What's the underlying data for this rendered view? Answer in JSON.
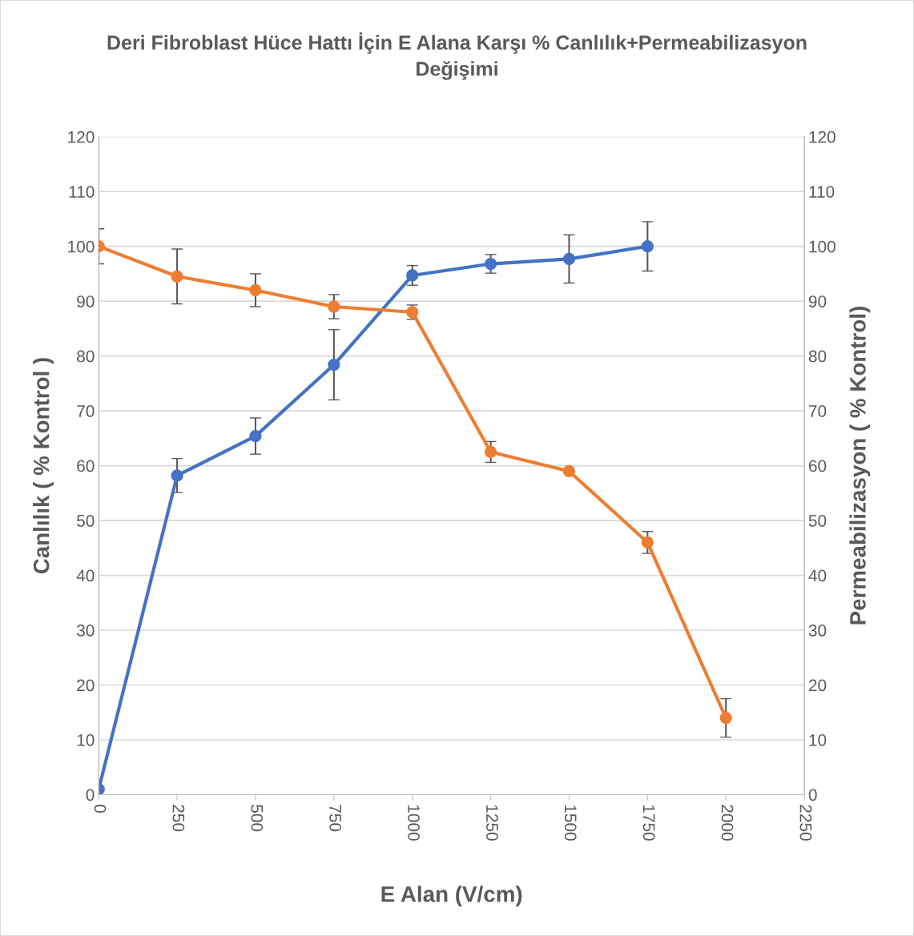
{
  "chart_data": {
    "type": "line",
    "title": "Deri Fibroblast Hüce Hattı İçin E Alana Karşı % Canlılık+Permeabilizasyon\nDeğişimi",
    "xlabel": "E Alan (V/cm)",
    "ylabel": "Canlılık ( % Kontrol )",
    "y2label": "Permeabilizasyon ( % Kontrol)",
    "series": [
      {
        "color": "#4472c4",
        "x": [
          0,
          250,
          500,
          750,
          1000,
          1250,
          1500,
          1750
        ],
        "values": [
          1.0,
          58.2,
          65.4,
          78.4,
          94.7,
          96.8,
          97.7,
          100
        ],
        "errors": [
          null,
          3.1,
          3.3,
          6.4,
          1.8,
          1.7,
          4.4,
          4.5
        ]
      },
      {
        "color": "#ed7d31",
        "axis": "y2",
        "x": [
          0,
          250,
          500,
          750,
          1000,
          1250,
          1500,
          1750,
          2000
        ],
        "values": [
          100,
          94.5,
          92.0,
          89.0,
          88.0,
          62.5,
          59.0,
          46.0,
          14.0
        ],
        "errors": [
          3.2,
          5,
          3,
          2.2,
          1.3,
          1.9,
          null,
          2,
          3.5
        ]
      }
    ],
    "xlim": [
      0,
      2250
    ],
    "xticks": [
      0,
      250,
      500,
      750,
      1000,
      1250,
      1500,
      1750,
      2000,
      2250
    ],
    "ylim": [
      0,
      120
    ],
    "yticks": [
      0,
      10,
      20,
      30,
      40,
      50,
      60,
      70,
      80,
      90,
      100,
      110,
      120
    ],
    "y2lim": [
      0,
      120
    ],
    "y2ticks": [
      0,
      10,
      20,
      30,
      40,
      50,
      60,
      70,
      80,
      90,
      100,
      110,
      120
    ],
    "grid": "y",
    "marker": "circle",
    "line_style": "solid",
    "legend": false
  }
}
